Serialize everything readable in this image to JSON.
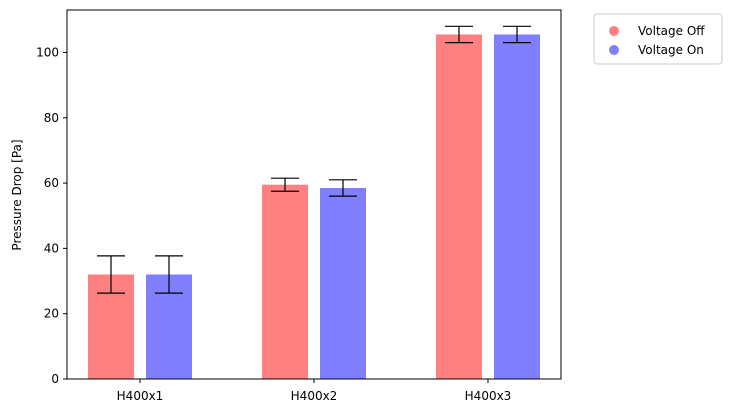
{
  "chart_data": {
    "type": "bar",
    "title": "",
    "xlabel": "",
    "ylabel": "Pressure Drop [Pa]",
    "categories": [
      "H400x1",
      "H400x2",
      "H400x3"
    ],
    "ylim": [
      0,
      113
    ],
    "yticks": [
      0,
      20,
      40,
      60,
      80,
      100
    ],
    "grid": false,
    "legend_position": "outside top-right",
    "series": [
      {
        "name": "Voltage Off",
        "color": "#ff8080",
        "values": [
          32,
          59.5,
          105.5
        ],
        "error": [
          5.7,
          2,
          2.5
        ]
      },
      {
        "name": "Voltage On",
        "color": "#8080ff",
        "values": [
          32,
          58.5,
          105.5
        ],
        "error": [
          5.7,
          2.5,
          2.5
        ]
      }
    ]
  }
}
